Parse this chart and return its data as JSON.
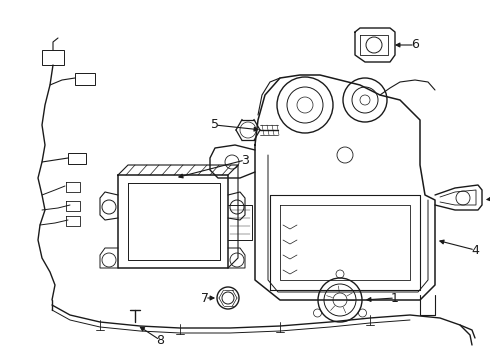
{
  "background_color": "#ffffff",
  "line_color": "#1a1a1a",
  "line_width": 1.0,
  "figsize": [
    4.9,
    3.6
  ],
  "dpi": 100
}
